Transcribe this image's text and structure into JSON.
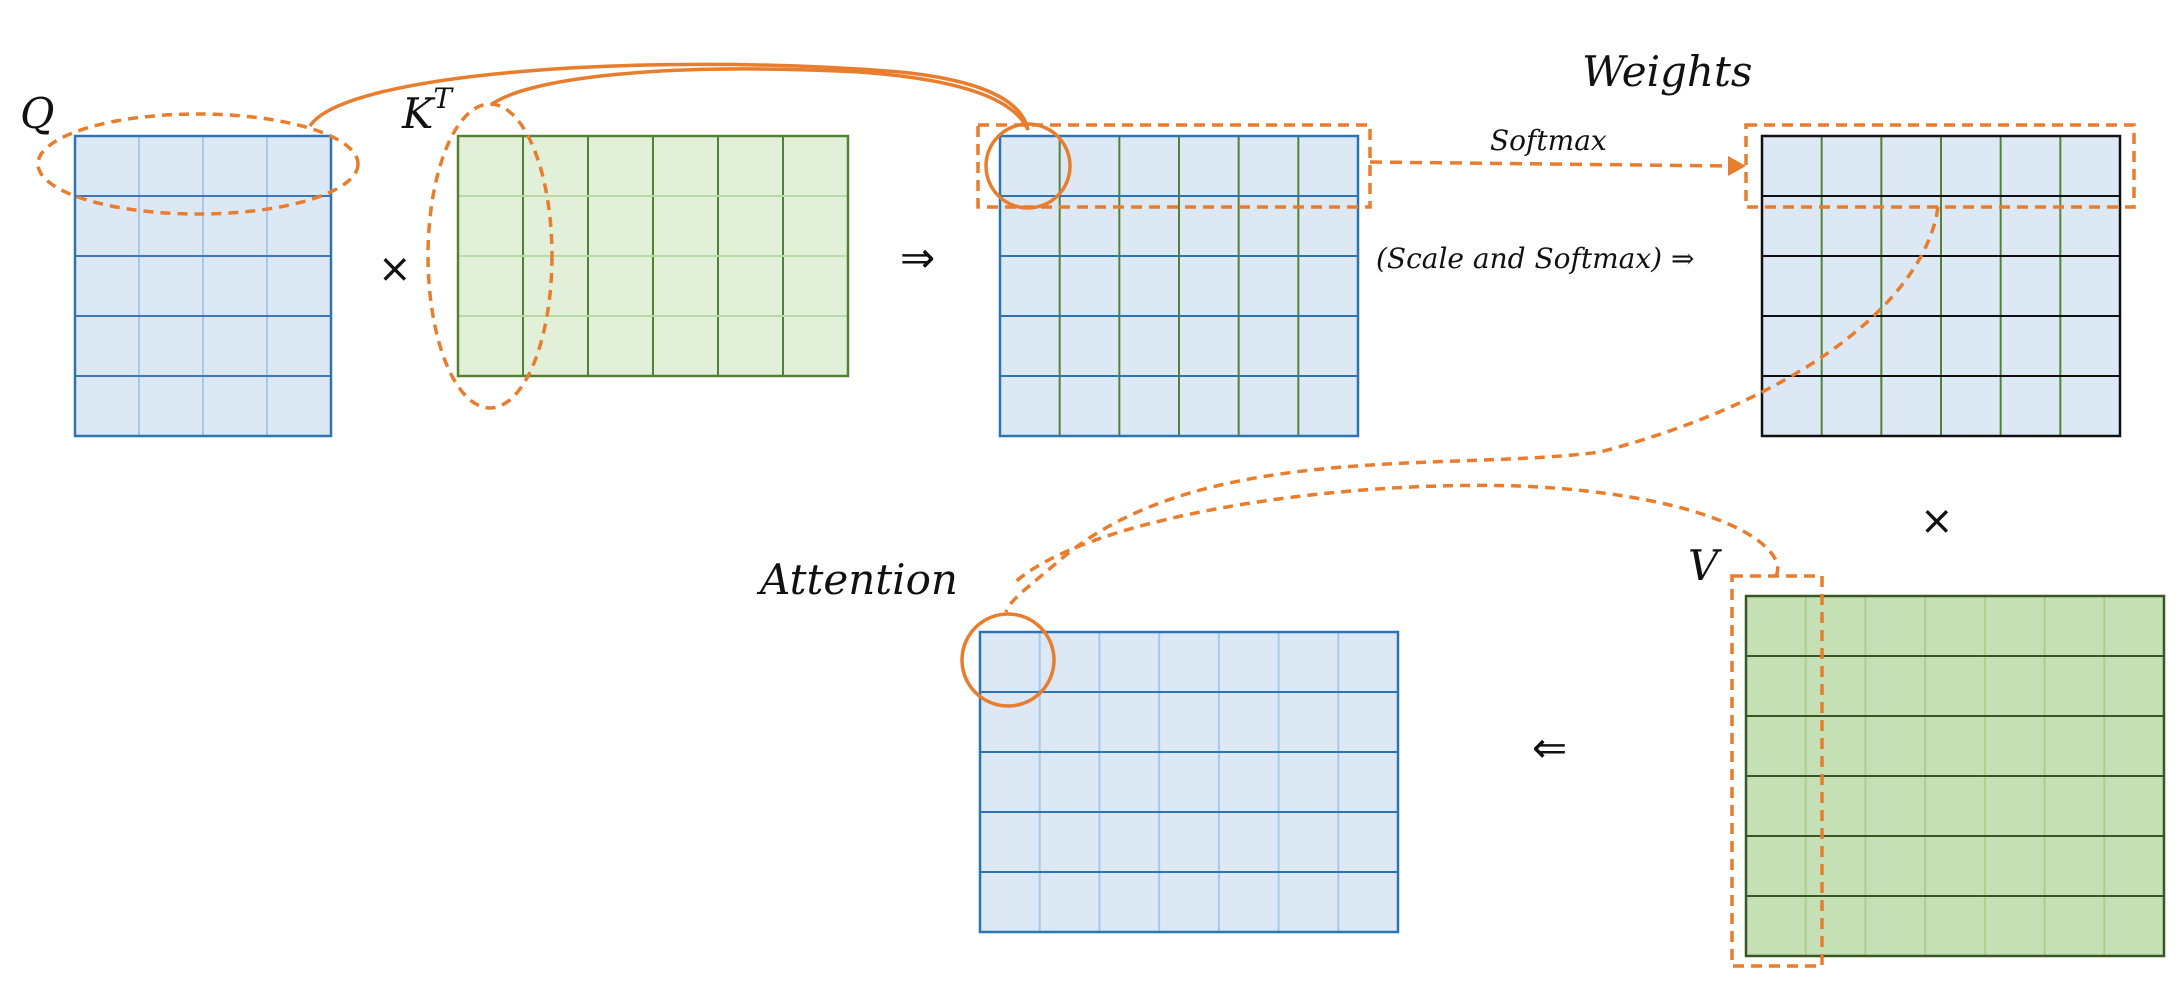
{
  "labels": {
    "q": "Q",
    "kt": "K",
    "kt_sup": "T",
    "weights": "Weights",
    "softmax": "Softmax",
    "scale_softmax": "(Scale and Softmax) ⇒",
    "attention": "Attention",
    "v": "V"
  },
  "operators": {
    "times_1": "×",
    "implies_1": "⇒",
    "times_2": "×",
    "implied_by": "⇐"
  },
  "matrices": {
    "q": {
      "rows": 5,
      "cols": 4,
      "fill": "#dde8f5",
      "row_line": "#3a78b8",
      "col_line": "#a9c7e8",
      "border": "#2e74b5"
    },
    "kt": {
      "rows": 4,
      "cols": 6,
      "fill": "#e2f0d9",
      "row_line": "#b9dca6",
      "col_line": "#548235",
      "border": "#548235"
    },
    "scores": {
      "rows": 5,
      "cols": 6,
      "fill": "#dde8f5",
      "row_line": "#2e74b5",
      "col_line": "#548235",
      "border": "#2e74b5"
    },
    "weights": {
      "rows": 5,
      "cols": 6,
      "fill": "#dde8f5",
      "row_line": "#111111",
      "col_line": "#548235",
      "border": "#111111"
    },
    "v": {
      "rows": 6,
      "cols": 7,
      "fill": "#c5e0b4",
      "row_line": "#385723",
      "col_line": "#a9d18e",
      "border": "#385723"
    },
    "attention": {
      "rows": 5,
      "cols": 7,
      "fill": "#dde8f5",
      "row_line": "#2e74b5",
      "col_line": "#a9c7e8",
      "border": "#2e74b5"
    }
  },
  "colors": {
    "highlight": "#e87d2e",
    "text": "#111111"
  }
}
